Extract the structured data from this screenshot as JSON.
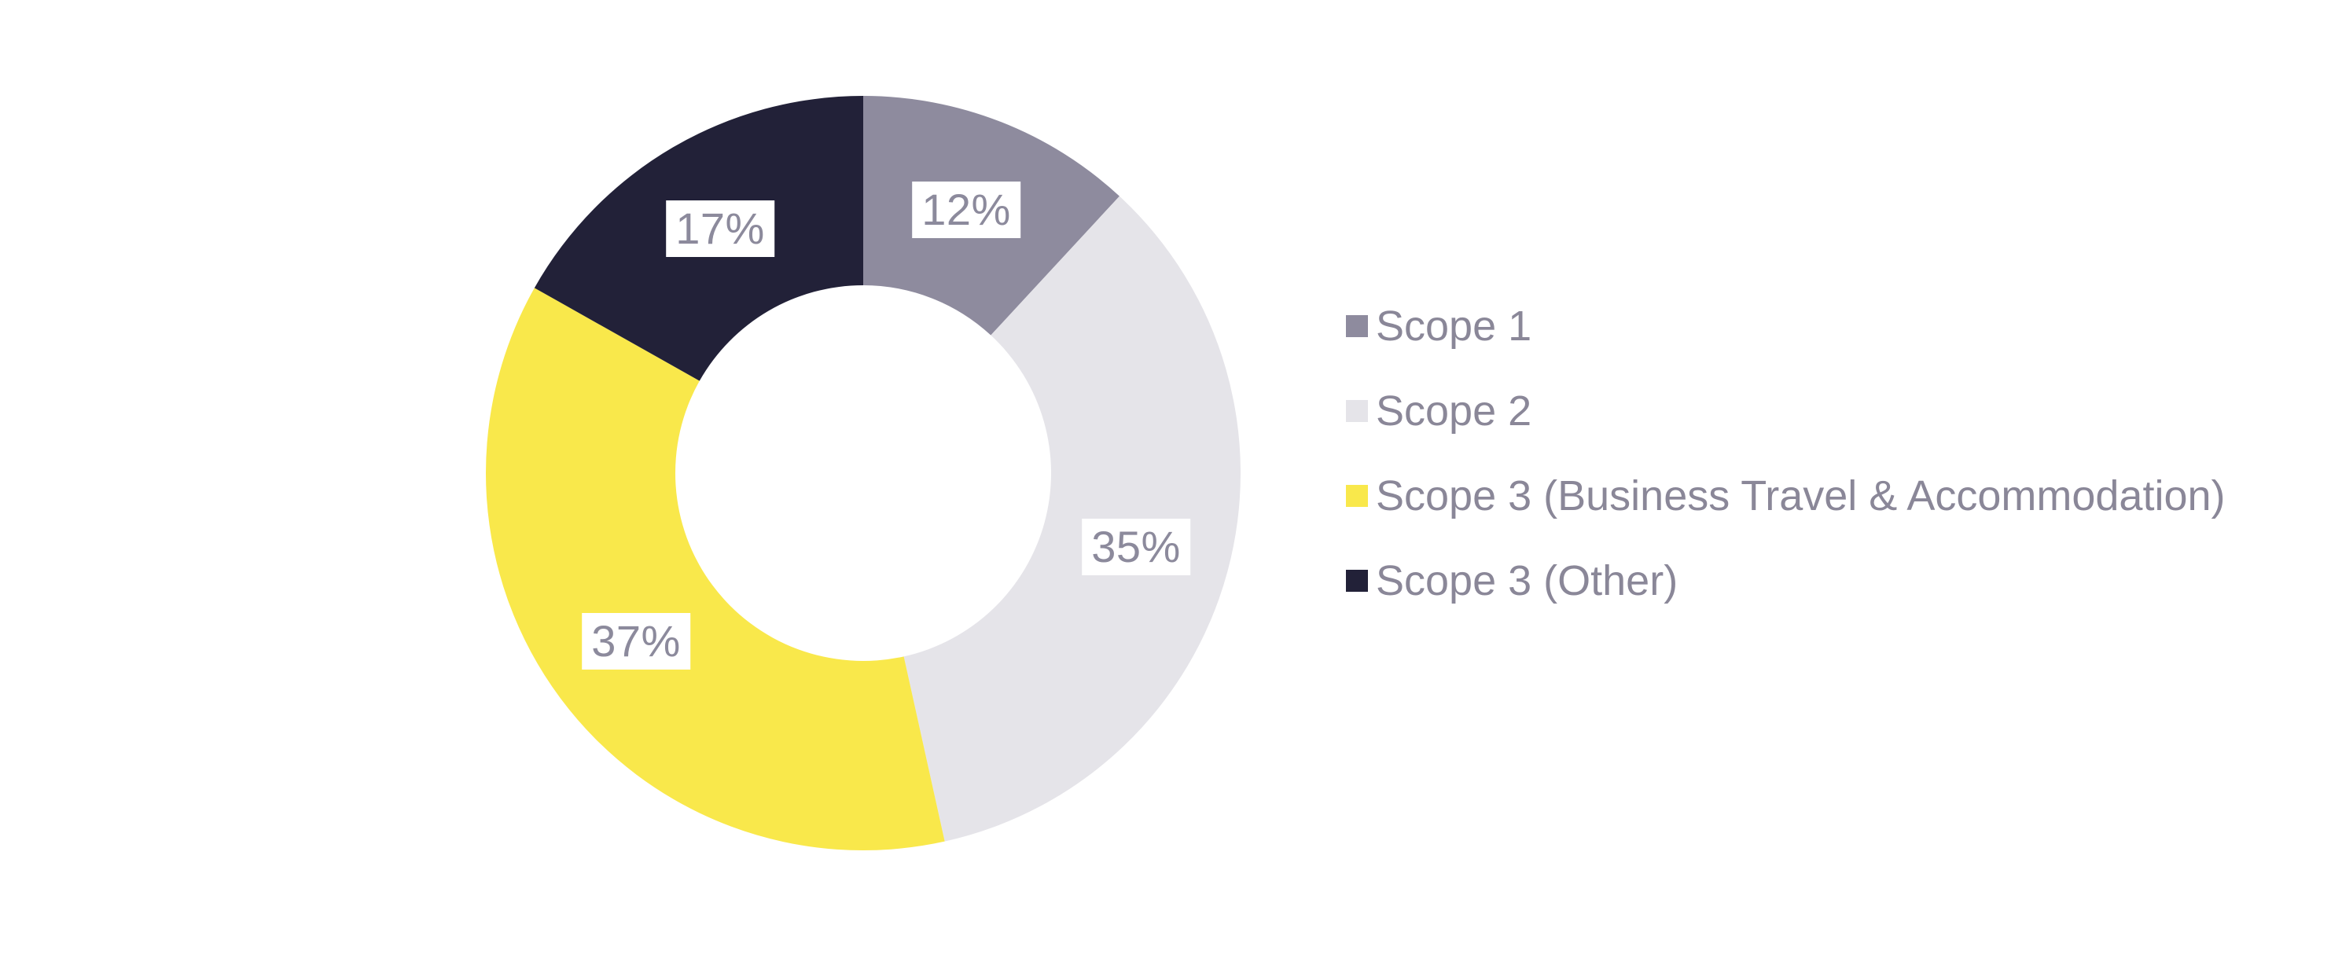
{
  "chart_data": {
    "type": "pie",
    "subtype": "donut",
    "title": "",
    "categories": [
      "Scope 1",
      "Scope 2",
      "Scope 3 (Business Travel & Accommodation)",
      "Scope 3 (Other)"
    ],
    "values": [
      12,
      35,
      37,
      17
    ],
    "data_labels": [
      "12%",
      "35%",
      "37%",
      "17%"
    ],
    "colors": [
      "#8e8b9e",
      "#e5e4e9",
      "#f9e84b",
      "#222138"
    ],
    "start_angle_deg": 0,
    "direction": "clockwise",
    "inner_radius_ratio": 0.5,
    "grid": false,
    "background": "#ffffff",
    "legend": {
      "position": "right",
      "marker": "square",
      "text_color": "#8a8798"
    },
    "data_label_style": {
      "text_color": "#8c8a9c",
      "background": "#ffffff"
    }
  }
}
